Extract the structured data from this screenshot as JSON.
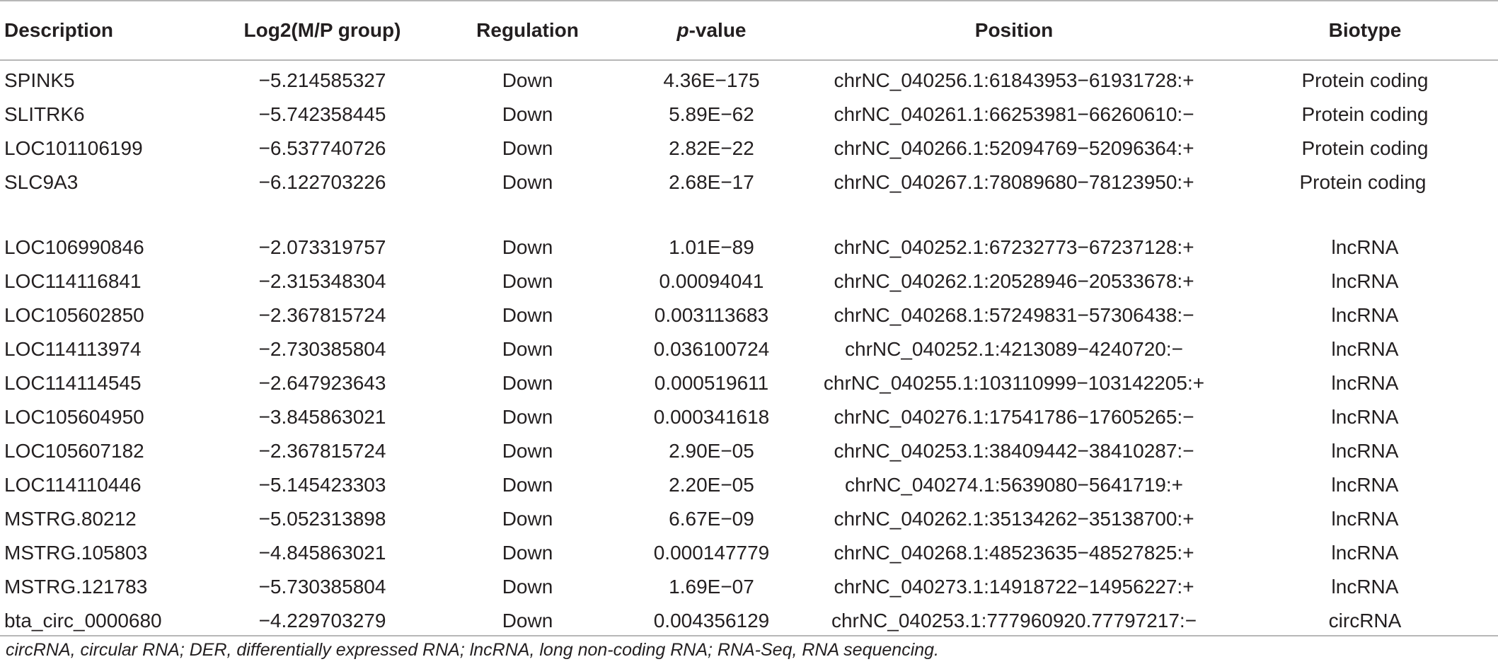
{
  "table": {
    "headers": {
      "description": "Description",
      "log2": "Log2(M/P group)",
      "regulation": "Regulation",
      "pvalue_italic": "p",
      "pvalue_rest": "-value",
      "position": "Position",
      "biotype": "Biotype"
    },
    "rows": [
      {
        "description": "SPINK5",
        "log2": "−5.214585327",
        "regulation": "Down",
        "pvalue": "4.36E−175",
        "position": "chrNC_040256.1:61843953−61931728:+",
        "biotype": "Protein coding"
      },
      {
        "description": "SLITRK6",
        "log2": "−5.742358445",
        "regulation": "Down",
        "pvalue": "5.89E−62",
        "position": "chrNC_040261.1:66253981−66260610:−",
        "biotype": "Protein coding"
      },
      {
        "description": "LOC101106199",
        "log2": "−6.537740726",
        "regulation": "Down",
        "pvalue": "2.82E−22",
        "position": "chrNC_040266.1:52094769−52096364:+",
        "biotype": "Protein coding"
      },
      {
        "description": "SLC9A3",
        "log2": "−6.122703226",
        "regulation": "Down",
        "pvalue": "2.68E−17",
        "position": "chrNC_040267.1:78089680−78123950:+",
        "biotype": "Protein coding"
      },
      {
        "description": "LOC106990846",
        "log2": "−2.073319757",
        "regulation": "Down",
        "pvalue": "1.01E−89",
        "position": "chrNC_040252.1:67232773−67237128:+",
        "biotype": "lncRNA"
      },
      {
        "description": "LOC114116841",
        "log2": "−2.315348304",
        "regulation": "Down",
        "pvalue": "0.00094041",
        "position": "chrNC_040262.1:20528946−20533678:+",
        "biotype": "lncRNA"
      },
      {
        "description": "LOC105602850",
        "log2": "−2.367815724",
        "regulation": "Down",
        "pvalue": "0.003113683",
        "position": "chrNC_040268.1:57249831−57306438:−",
        "biotype": "lncRNA"
      },
      {
        "description": "LOC114113974",
        "log2": "−2.730385804",
        "regulation": "Down",
        "pvalue": "0.036100724",
        "position": "chrNC_040252.1:4213089−4240720:−",
        "biotype": "lncRNA"
      },
      {
        "description": "LOC114114545",
        "log2": "−2.647923643",
        "regulation": "Down",
        "pvalue": "0.000519611",
        "position": "chrNC_040255.1:103110999−103142205:+",
        "biotype": "lncRNA"
      },
      {
        "description": "LOC105604950",
        "log2": "−3.845863021",
        "regulation": "Down",
        "pvalue": "0.000341618",
        "position": "chrNC_040276.1:17541786−17605265:−",
        "biotype": "lncRNA"
      },
      {
        "description": "LOC105607182",
        "log2": "−2.367815724",
        "regulation": "Down",
        "pvalue": "2.90E−05",
        "position": "chrNC_040253.1:38409442−38410287:−",
        "biotype": "lncRNA"
      },
      {
        "description": "LOC114110446",
        "log2": "−5.145423303",
        "regulation": "Down",
        "pvalue": "2.20E−05",
        "position": "chrNC_040274.1:5639080−5641719:+",
        "biotype": "lncRNA"
      },
      {
        "description": "MSTRG.80212",
        "log2": "−5.052313898",
        "regulation": "Down",
        "pvalue": "6.67E−09",
        "position": "chrNC_040262.1:35134262−35138700:+",
        "biotype": "lncRNA"
      },
      {
        "description": "MSTRG.105803",
        "log2": "−4.845863021",
        "regulation": "Down",
        "pvalue": "0.000147779",
        "position": "chrNC_040268.1:48523635−48527825:+",
        "biotype": "lncRNA"
      },
      {
        "description": "MSTRG.121783",
        "log2": "−5.730385804",
        "regulation": "Down",
        "pvalue": "1.69E−07",
        "position": "chrNC_040273.1:14918722−14956227:+",
        "biotype": "lncRNA"
      },
      {
        "description": "bta_circ_0000680",
        "log2": "−4.229703279",
        "regulation": "Down",
        "pvalue": "0.004356129",
        "position": "chrNC_040253.1:777960920.77797217:−",
        "biotype": "circRNA"
      }
    ]
  },
  "footnote": "circRNA, circular RNA; DER, differentially expressed RNA; lncRNA, long non-coding RNA; RNA-Seq, RNA sequencing."
}
